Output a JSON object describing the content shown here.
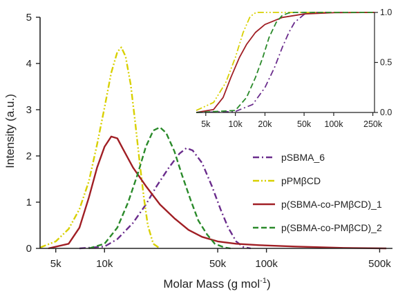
{
  "chart_data": [
    {
      "type": "line",
      "xscale": "log",
      "xlim": [
        4000,
        600000
      ],
      "ylim": [
        0,
        5
      ],
      "xlabel": "Molar Mass (g mol",
      "xlabel_sup": "-1",
      "xlabel_close": ")",
      "ylabel": "Intensity (a.u.)",
      "xticks": [
        {
          "value": 5000,
          "label": "5k"
        },
        {
          "value": 10000,
          "label": "10k"
        },
        {
          "value": 50000,
          "label": "50k"
        },
        {
          "value": 100000,
          "label": "100k"
        },
        {
          "value": 500000,
          "label": "500k"
        }
      ],
      "yticks": [
        {
          "value": 0,
          "label": "0"
        },
        {
          "value": 1,
          "label": "1"
        },
        {
          "value": 2,
          "label": "2"
        },
        {
          "value": 3,
          "label": "3"
        },
        {
          "value": 4,
          "label": "4"
        },
        {
          "value": 5,
          "label": "5"
        }
      ],
      "legend_position": "right",
      "series": [
        {
          "name": "pSBMA_6",
          "color": "#6a2c8c",
          "dash": "dashdot",
          "points": [
            [
              7000,
              0
            ],
            [
              10000,
              0.04
            ],
            [
              12000,
              0.2
            ],
            [
              15000,
              0.55
            ],
            [
              18000,
              0.95
            ],
            [
              21000,
              1.35
            ],
            [
              25000,
              1.75
            ],
            [
              29000,
              2.05
            ],
            [
              32000,
              2.17
            ],
            [
              35000,
              2.12
            ],
            [
              40000,
              1.85
            ],
            [
              46000,
              1.35
            ],
            [
              52000,
              0.85
            ],
            [
              58000,
              0.45
            ],
            [
              65000,
              0.15
            ],
            [
              72000,
              0.03
            ],
            [
              80000,
              0
            ]
          ]
        },
        {
          "name": "pPMβCD",
          "color": "#d8d000",
          "dash": "dashdotdot",
          "points": [
            [
              4000,
              0.02
            ],
            [
              5000,
              0.15
            ],
            [
              6000,
              0.42
            ],
            [
              7000,
              0.85
            ],
            [
              8000,
              1.45
            ],
            [
              9000,
              2.25
            ],
            [
              10000,
              3.05
            ],
            [
              11000,
              3.8
            ],
            [
              12000,
              4.25
            ],
            [
              12700,
              4.35
            ],
            [
              13500,
              4.15
            ],
            [
              14500,
              3.55
            ],
            [
              15500,
              2.7
            ],
            [
              16500,
              1.85
            ],
            [
              17500,
              1.1
            ],
            [
              18500,
              0.5
            ],
            [
              20000,
              0.1
            ],
            [
              22000,
              0
            ]
          ]
        },
        {
          "name": "p(SBMA-co-PMβCD)_1",
          "color": "#a01e24",
          "dash": "solid",
          "points": [
            [
              4500,
              0
            ],
            [
              6000,
              0.1
            ],
            [
              7000,
              0.45
            ],
            [
              8000,
              1.1
            ],
            [
              9000,
              1.75
            ],
            [
              10000,
              2.2
            ],
            [
              11000,
              2.42
            ],
            [
              12000,
              2.38
            ],
            [
              13000,
              2.15
            ],
            [
              15000,
              1.75
            ],
            [
              18000,
              1.35
            ],
            [
              22000,
              0.95
            ],
            [
              27000,
              0.65
            ],
            [
              33000,
              0.4
            ],
            [
              40000,
              0.25
            ],
            [
              50000,
              0.15
            ],
            [
              65000,
              0.1
            ],
            [
              90000,
              0.07
            ],
            [
              150000,
              0.04
            ],
            [
              300000,
              0.01
            ],
            [
              550000,
              0
            ]
          ]
        },
        {
          "name": "p(SBMA-co-PMβCD)_2",
          "color": "#2a8a2a",
          "dash": "dashed",
          "points": [
            [
              8000,
              0
            ],
            [
              10000,
              0.1
            ],
            [
              12000,
              0.45
            ],
            [
              14000,
              1.0
            ],
            [
              16000,
              1.6
            ],
            [
              18000,
              2.2
            ],
            [
              20000,
              2.55
            ],
            [
              22000,
              2.62
            ],
            [
              24000,
              2.5
            ],
            [
              27000,
              2.1
            ],
            [
              30000,
              1.6
            ],
            [
              34000,
              1.05
            ],
            [
              38000,
              0.6
            ],
            [
              43000,
              0.3
            ],
            [
              48000,
              0.1
            ],
            [
              55000,
              0.02
            ],
            [
              60000,
              0
            ]
          ]
        }
      ]
    },
    {
      "type": "line",
      "xscale": "log",
      "xlim": [
        4000,
        260000
      ],
      "ylim": [
        0,
        1
      ],
      "xticks": [
        {
          "value": 5000,
          "label": "5k"
        },
        {
          "value": 10000,
          "label": "10k"
        },
        {
          "value": 20000,
          "label": "20k"
        },
        {
          "value": 50000,
          "label": "50k"
        },
        {
          "value": 100000,
          "label": "100k"
        },
        {
          "value": 250000,
          "label": "250k"
        }
      ],
      "yticks": [
        {
          "value": 0,
          "label": "0.0"
        },
        {
          "value": 0.5,
          "label": "0.5"
        },
        {
          "value": 1,
          "label": "1.0"
        }
      ],
      "y_axis_side": "right",
      "series": [
        {
          "name": "pSBMA_6",
          "color": "#6a2c8c",
          "dash": "dashdot",
          "points": [
            [
              4000,
              0
            ],
            [
              10000,
              0.01
            ],
            [
              15000,
              0.08
            ],
            [
              20000,
              0.25
            ],
            [
              25000,
              0.45
            ],
            [
              30000,
              0.65
            ],
            [
              35000,
              0.8
            ],
            [
              40000,
              0.9
            ],
            [
              50000,
              0.98
            ],
            [
              60000,
              1.0
            ],
            [
              260000,
              1.0
            ]
          ]
        },
        {
          "name": "pPMβCD",
          "color": "#d8d000",
          "dash": "dashdotdot",
          "points": [
            [
              4000,
              0.02
            ],
            [
              6000,
              0.1
            ],
            [
              8000,
              0.3
            ],
            [
              10000,
              0.55
            ],
            [
              12000,
              0.8
            ],
            [
              14000,
              0.95
            ],
            [
              15500,
              0.99
            ],
            [
              17000,
              1.0
            ],
            [
              260000,
              1.0
            ]
          ]
        },
        {
          "name": "p(SBMA-co-PMβCD)_1",
          "color": "#a01e24",
          "dash": "solid",
          "points": [
            [
              4000,
              0
            ],
            [
              6000,
              0.03
            ],
            [
              7500,
              0.15
            ],
            [
              9000,
              0.35
            ],
            [
              11000,
              0.55
            ],
            [
              13000,
              0.68
            ],
            [
              16000,
              0.8
            ],
            [
              20000,
              0.88
            ],
            [
              30000,
              0.95
            ],
            [
              50000,
              0.985
            ],
            [
              100000,
              0.997
            ],
            [
              260000,
              1.0
            ]
          ]
        },
        {
          "name": "p(SBMA-co-PMβCD)_2",
          "color": "#2a8a2a",
          "dash": "dashed",
          "points": [
            [
              4000,
              0
            ],
            [
              10000,
              0.02
            ],
            [
              13000,
              0.15
            ],
            [
              16000,
              0.35
            ],
            [
              19000,
              0.55
            ],
            [
              22000,
              0.75
            ],
            [
              26000,
              0.9
            ],
            [
              30000,
              0.97
            ],
            [
              35000,
              0.995
            ],
            [
              40000,
              1.0
            ],
            [
              260000,
              1.0
            ]
          ]
        }
      ]
    }
  ]
}
